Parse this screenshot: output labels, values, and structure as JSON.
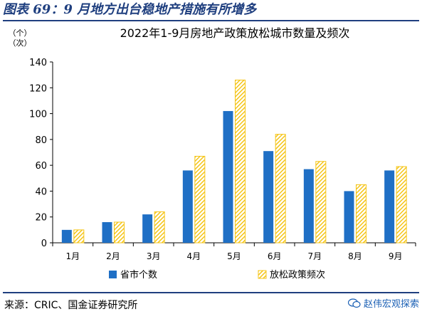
{
  "figure_title": "图表 69：9 月地方出台稳地产措施有所增多",
  "source_text": "来源：CRIC、国金证券研究所",
  "watermark": "赵伟宏观探索",
  "colors": {
    "title": "#1f3f7f",
    "series_blue": "#1f6fc5",
    "series_yellow": "#f5c518",
    "axis": "#000000"
  },
  "chart_data": {
    "type": "bar",
    "title": "2022年1-9月房地产政策放松城市数量及频次",
    "ylabel": "（个）\n（次）",
    "ylabel_lines": [
      "（个）",
      "（次）"
    ],
    "ylim": [
      0,
      140
    ],
    "yticks": [
      0,
      20,
      40,
      60,
      80,
      100,
      120,
      140
    ],
    "categories": [
      "1月",
      "2月",
      "3月",
      "4月",
      "5月",
      "6月",
      "7月",
      "8月",
      "9月"
    ],
    "series": [
      {
        "name": "省市个数",
        "color": "#1f6fc5",
        "pattern": "solid",
        "values": [
          10,
          16,
          22,
          56,
          102,
          71,
          57,
          40,
          56
        ]
      },
      {
        "name": "放松政策频次",
        "color": "#f5c518",
        "pattern": "hatched",
        "values": [
          10,
          16,
          24,
          67,
          126,
          84,
          63,
          45,
          59
        ]
      }
    ],
    "legend_position": "bottom",
    "grid": false
  }
}
